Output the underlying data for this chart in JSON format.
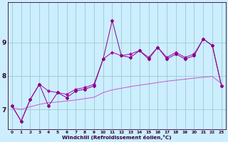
{
  "xlabel": "Windchill (Refroidissement éolien,°C)",
  "x_values": [
    0,
    1,
    2,
    3,
    4,
    5,
    6,
    7,
    8,
    9,
    10,
    11,
    12,
    13,
    14,
    15,
    16,
    17,
    18,
    19,
    20,
    21,
    22,
    23
  ],
  "line_jagged": [
    7.1,
    6.65,
    7.3,
    7.75,
    7.1,
    7.5,
    7.35,
    7.55,
    7.6,
    7.7,
    8.5,
    9.65,
    8.6,
    8.55,
    8.75,
    8.5,
    8.85,
    8.5,
    8.65,
    8.5,
    8.6,
    9.1,
    8.9,
    7.7
  ],
  "line_smooth": [
    7.1,
    6.65,
    7.3,
    7.75,
    7.55,
    7.5,
    7.45,
    7.6,
    7.65,
    7.75,
    8.5,
    8.7,
    8.6,
    8.65,
    8.75,
    8.55,
    8.85,
    8.55,
    8.7,
    8.55,
    8.65,
    9.1,
    8.9,
    7.7
  ],
  "line_trend": [
    7.05,
    7.0,
    7.08,
    7.15,
    7.2,
    7.22,
    7.25,
    7.28,
    7.32,
    7.36,
    7.5,
    7.58,
    7.63,
    7.68,
    7.72,
    7.76,
    7.8,
    7.84,
    7.87,
    7.9,
    7.93,
    7.96,
    7.98,
    7.77
  ],
  "line_color": "#880088",
  "smooth_color": "#aa00aa",
  "trend_color": "#cc55cc",
  "bg_color": "#cceeff",
  "grid_color": "#99cccc",
  "axis_color": "#330033",
  "ylim": [
    6.4,
    10.2
  ],
  "yticks": [
    7,
    8,
    9
  ],
  "xlim": [
    -0.5,
    23.5
  ],
  "figsize": [
    3.2,
    2.0
  ],
  "dpi": 100
}
